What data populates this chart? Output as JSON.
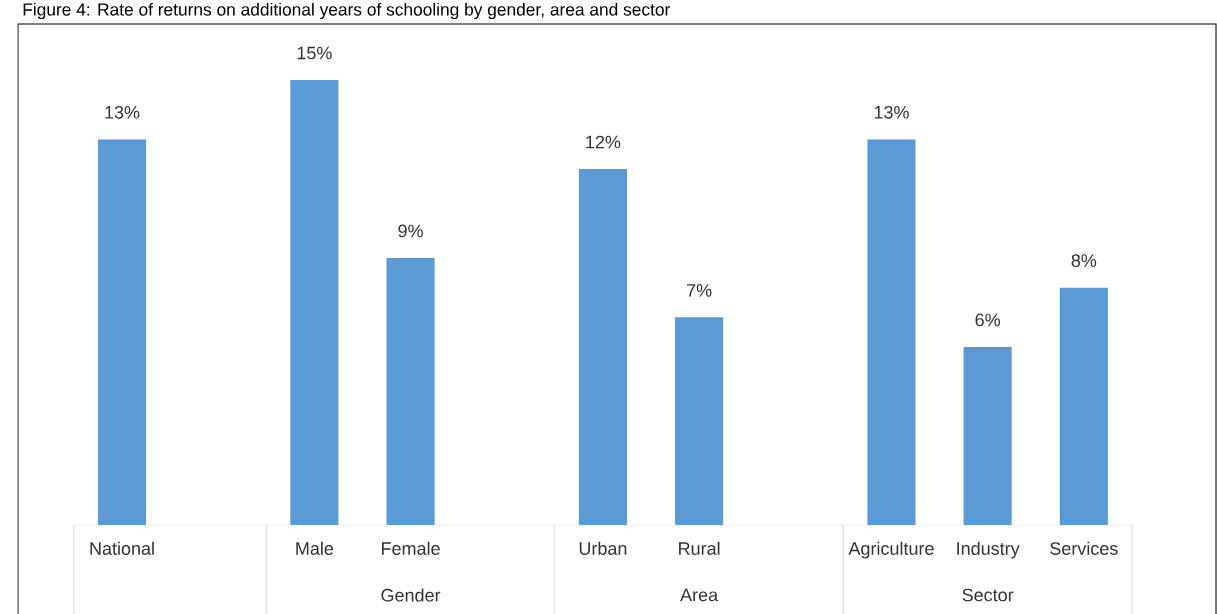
{
  "chart_data": {
    "type": "bar",
    "title": "Figure 4: Rate of returns on additional years of schooling by gender, area and sector",
    "categories": [
      "National",
      null,
      "Male",
      "Female",
      null,
      "Urban",
      "Rural",
      null,
      "Agriculture",
      "Industry",
      "Services"
    ],
    "values": [
      13,
      null,
      15,
      9,
      null,
      12,
      7,
      null,
      13,
      6,
      8
    ],
    "value_labels": [
      "13%",
      null,
      "15%",
      "9%",
      null,
      "12%",
      "7%",
      null,
      "13%",
      "6%",
      "8%"
    ],
    "color": "#5b9bd5",
    "annotations": [
      "Gender",
      "Area",
      "Sector"
    ]
  }
}
